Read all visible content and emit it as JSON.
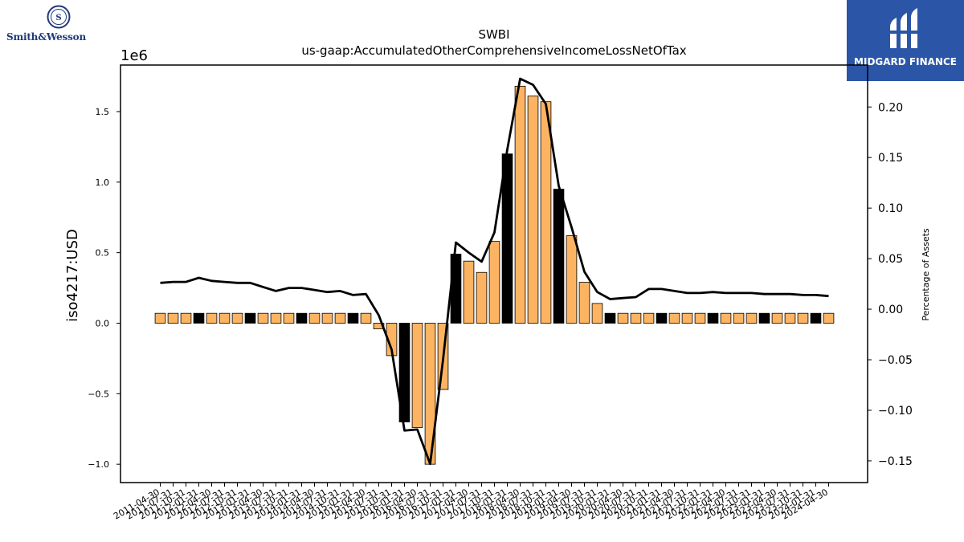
{
  "logos": {
    "left_brand": "Smith&Wesson",
    "right_brand": "MIDGARD FINANCE",
    "right_bg": "#2b56a8"
  },
  "chart_data": {
    "type": "bar",
    "title": "SWBI",
    "subtitle": "us-gaap:AccumulatedOtherComprehensiveIncomeLossNetOfTax",
    "ylabel": "iso4217:USD",
    "y2label": "Percentage of Assets",
    "y_offset_label": "1e6",
    "ylim": [
      -1.13,
      1.83
    ],
    "y2lim": [
      -0.1715,
      0.2415
    ],
    "y_ticks": [
      -1.0,
      -0.5,
      0.0,
      0.5,
      1.0,
      1.5
    ],
    "y_tick_labels": [
      "−1.0",
      "−0.5",
      "0.0",
      "0.5",
      "1.0",
      "1.5"
    ],
    "y2_ticks": [
      -0.15,
      -0.1,
      -0.05,
      0.0,
      0.05,
      0.1,
      0.15,
      0.2
    ],
    "y2_tick_labels": [
      "−0.15",
      "−0.10",
      "−0.05",
      "0.00",
      "0.05",
      "0.10",
      "0.15",
      "0.20"
    ],
    "colors": {
      "bar": "#fdb462",
      "bar_highlight": "#000000",
      "line": "#000000"
    },
    "categories": [
      "2011-04-30",
      "2011-07-31",
      "2011-10-31",
      "2012-01-31",
      "2012-04-30",
      "2012-07-31",
      "2012-10-31",
      "2013-01-31",
      "2013-04-30",
      "2013-07-31",
      "2013-10-31",
      "2014-01-31",
      "2014-04-30",
      "2014-07-31",
      "2014-10-31",
      "2015-01-31",
      "2015-04-30",
      "2015-07-31",
      "2015-10-31",
      "2016-01-31",
      "2016-04-30",
      "2016-07-31",
      "2016-10-31",
      "2017-01-31",
      "2017-04-30",
      "2017-07-31",
      "2017-10-31",
      "2018-01-31",
      "2018-04-30",
      "2018-07-31",
      "2018-10-31",
      "2019-01-31",
      "2019-04-30",
      "2019-07-31",
      "2019-10-31",
      "2020-01-31",
      "2020-04-30",
      "2020-07-31",
      "2020-10-31",
      "2021-01-31",
      "2021-04-30",
      "2021-07-31",
      "2021-10-31",
      "2022-01-31",
      "2022-04-30",
      "2022-07-31",
      "2022-10-31",
      "2023-01-31",
      "2023-04-30",
      "2023-07-31",
      "2023-10-31",
      "2024-01-31",
      "2024-04-30"
    ],
    "series": [
      {
        "values": [
          0.07,
          0.07,
          0.07,
          0.07,
          0.07,
          0.07,
          0.07,
          0.07,
          0.07,
          0.07,
          0.07,
          0.07,
          0.07,
          0.07,
          0.07,
          0.07,
          0.07,
          -0.04,
          -0.23,
          -0.7,
          -0.74,
          -1.0,
          -0.47,
          0.49,
          0.44,
          0.36,
          0.58,
          1.2,
          1.68,
          1.61,
          1.57,
          0.95,
          0.62,
          0.29,
          0.14,
          0.07,
          0.07,
          0.07,
          0.07,
          0.07,
          0.07,
          0.07,
          0.07,
          0.07,
          0.07,
          0.07,
          0.07,
          0.07,
          0.07,
          0.07,
          0.07,
          0.07,
          0.07
        ],
        "highlight": [
          false,
          false,
          false,
          true,
          false,
          false,
          false,
          true,
          false,
          false,
          false,
          true,
          false,
          false,
          false,
          true,
          false,
          false,
          false,
          true,
          false,
          false,
          false,
          true,
          false,
          false,
          false,
          true,
          false,
          false,
          false,
          true,
          false,
          false,
          false,
          true,
          false,
          false,
          false,
          true,
          false,
          false,
          false,
          true,
          false,
          false,
          false,
          true,
          false,
          false,
          false,
          true,
          false
        ]
      },
      {
        "axis": "right",
        "values": [
          0.026,
          0.027,
          0.027,
          0.031,
          0.028,
          0.027,
          0.026,
          0.026,
          0.022,
          0.018,
          0.021,
          0.021,
          0.019,
          0.017,
          0.018,
          0.014,
          0.015,
          -0.006,
          -0.04,
          -0.12,
          -0.119,
          -0.153,
          -0.05,
          0.066,
          0.056,
          0.047,
          0.076,
          0.158,
          0.228,
          0.222,
          0.203,
          0.122,
          0.081,
          0.037,
          0.017,
          0.01,
          0.011,
          0.012,
          0.02,
          0.02,
          0.018,
          0.016,
          0.016,
          0.017,
          0.016,
          0.016,
          0.016,
          0.015,
          0.015,
          0.015,
          0.014,
          0.014,
          0.013
        ]
      }
    ]
  }
}
